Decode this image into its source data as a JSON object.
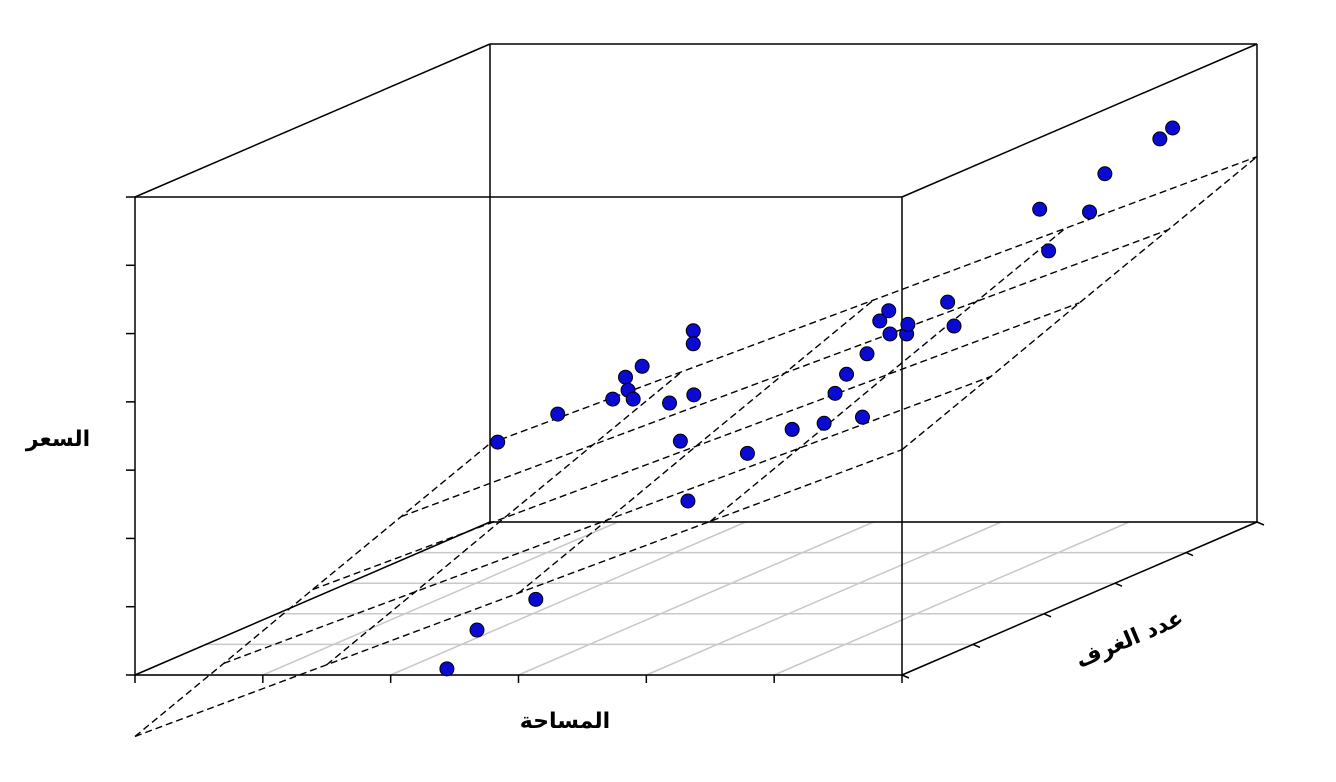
{
  "chart_data": {
    "type": "scatter3d",
    "zlabel": "السعر",
    "xlabel": "المساحة",
    "ylabel": "عدد الغرف",
    "xlim": [
      0,
      6
    ],
    "ylim": [
      0,
      5
    ],
    "zlim": [
      0,
      7
    ],
    "xticks": [
      0,
      1,
      2,
      3,
      4,
      5,
      6
    ],
    "yticks": [
      0,
      1,
      2,
      3,
      4,
      5
    ],
    "zticks": [
      0,
      1,
      2,
      3,
      4,
      5,
      6,
      7
    ],
    "grid": true,
    "color": "#0a0ad2",
    "points": {
      "x": [
        0.06,
        0.53,
        0.96,
        1.06,
        1.08,
        1.12,
        1.19,
        1.96,
        2.6,
        1.59,
        1.59,
        2.15,
        3.77,
        3.68,
        4.03,
        4.28,
        3.81,
        3.9,
        4.58,
        4.06,
        4.16,
        4.23,
        4.24,
        4.37,
        4.38,
        3.58,
        3.63,
        4.3,
        4.37,
        4.69,
        4.81,
        5.24,
        5.34,
        2.58,
        2.12,
        2.44
      ],
      "y": [
        5,
        5,
        5,
        5,
        5,
        5,
        5,
        4,
        3,
        5,
        5,
        4,
        1,
        2,
        2,
        2,
        3,
        3,
        2,
        3,
        3,
        3,
        3,
        3,
        3,
        5,
        5,
        5,
        5,
        5,
        5,
        5,
        5,
        1,
        1,
        0
      ],
      "z": [
        1.17,
        1.58,
        1.8,
        2.12,
        1.93,
        1.8,
        2.28,
        2.19,
        2.08,
        2.8,
        2.61,
        2.31,
        2.1,
        2.35,
        2.7,
        2.79,
        2.78,
        3.06,
        2.88,
        3.36,
        3.84,
        3.99,
        3.65,
        3.65,
        3.79,
        3.22,
        2.87,
        4.58,
        3.97,
        4.54,
        5.1,
        5.61,
        5.77,
        0.66,
        0.21,
        0.09
      ]
    },
    "surface": {
      "x": [
        0,
        1.5,
        3,
        4.5,
        6
      ],
      "y": [
        0,
        1.25,
        2.5,
        3.75,
        5
      ],
      "z": [
        [
          -0.9,
          0.15,
          1.2,
          2.25,
          3.3
        ],
        [
          -0.39,
          0.66,
          1.71,
          2.76,
          3.81
        ],
        [
          0.13,
          1.18,
          2.23,
          3.28,
          4.33
        ],
        [
          0.64,
          1.69,
          2.74,
          3.79,
          4.84
        ],
        [
          1.15,
          2.2,
          3.25,
          4.3,
          5.35
        ]
      ]
    }
  }
}
